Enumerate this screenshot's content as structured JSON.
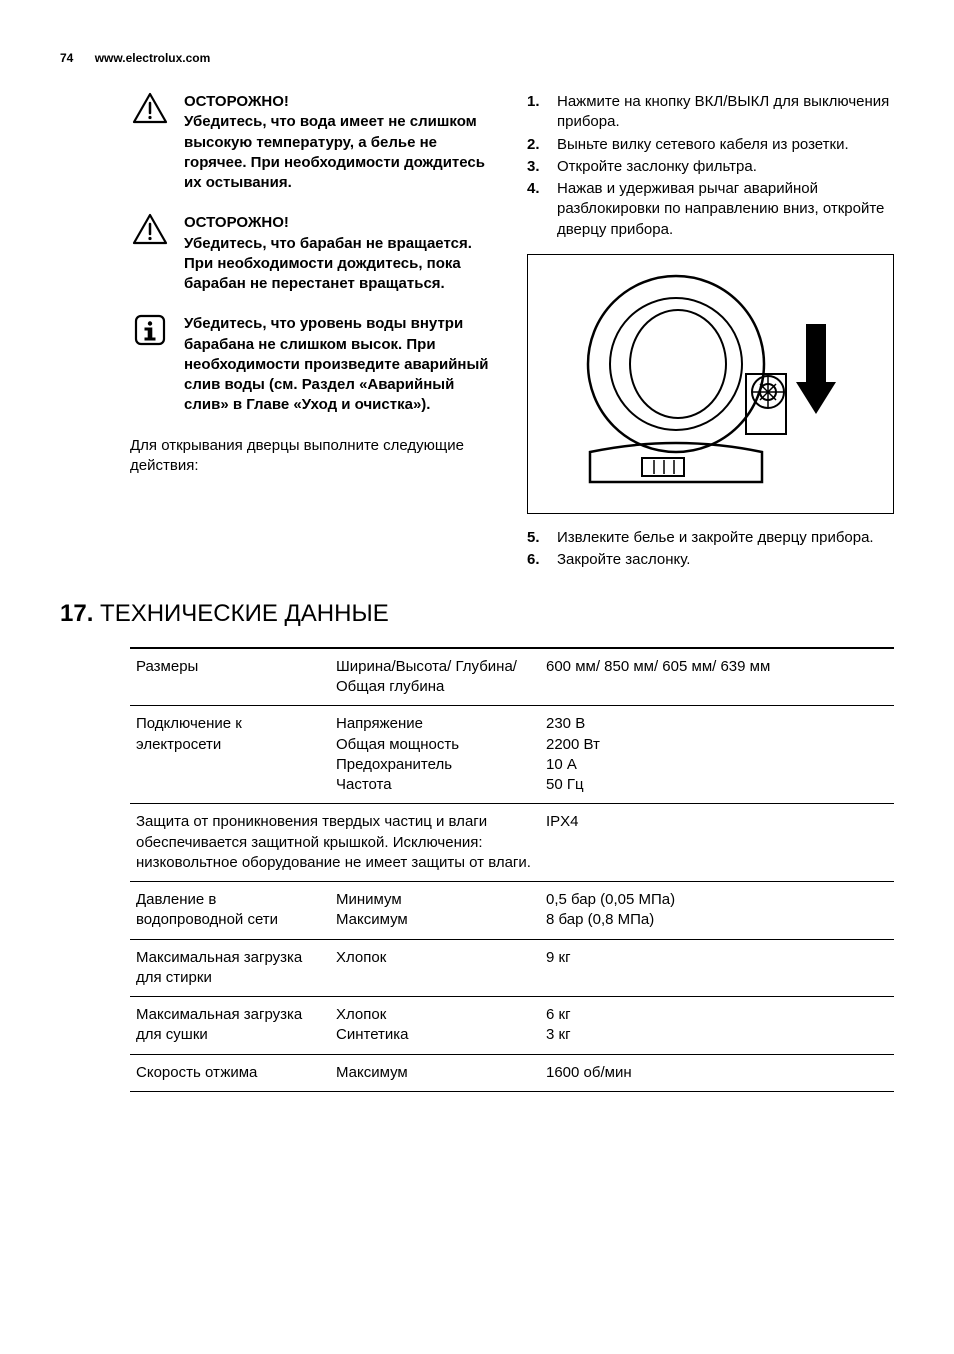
{
  "header": {
    "page": "74",
    "site": "www.electrolux.com"
  },
  "warnings": {
    "w1": {
      "title": "ОСТОРОЖНО!",
      "body": "Убедитесь, что вода имеет не слишком высокую температуру, а белье не горячее. При необходимости дождитесь их остывания."
    },
    "w2": {
      "title": "ОСТОРОЖНО!",
      "body": "Убедитесь, что барабан не вращается. При необходимости дождитесь, пока барабан не перестанет вращаться."
    },
    "info": {
      "body": "Убедитесь, что уровень воды внутри барабана не слишком высок. При необходимости произведите аварийный слив воды (см. Раздел «Аварийный слив» в Главе «Уход и очистка»)."
    }
  },
  "intro": "Для открывания дверцы выполните следующие действия:",
  "steps_a": [
    "Нажмите на кнопку ВКЛ/ВЫКЛ для выключения прибора.",
    "Выньте вилку сетевого кабеля из розетки.",
    "Откройте заслонку фильтра.",
    "Нажав и удерживая рычаг аварийной разблокировки по направлению вниз, откройте дверцу прибора."
  ],
  "steps_b": [
    "Извлеките белье и закройте дверцу прибора.",
    "Закройте заслонку."
  ],
  "section": {
    "num": "17.",
    "title": "ТЕХНИЧЕСКИЕ ДАННЫЕ"
  },
  "specs": [
    {
      "c1": "Размеры",
      "c2": "Ширина/Высота/ Глубина/Общая глубина",
      "c3": "600 мм/ 850 мм/ 605 мм/ 639 мм"
    },
    {
      "c1": "Подключение к электросети",
      "c2": "Напряжение\nОбщая мощность\nПредохранитель\nЧастота",
      "c3": "230 В\n2200 Вт\n10 А\n50 Гц"
    },
    {
      "span": true,
      "c1": "Защита от проникновения твердых частиц и влаги обеспечивается защитной крышкой. Исключения: низковольтное оборудование не имеет защиты от влаги.",
      "c3": "IPX4"
    },
    {
      "c1": "Давление в водопроводной сети",
      "c2": "Минимум\nМаксимум",
      "c3": "0,5 бар (0,05 МПа)\n8 бар (0,8 МПа)"
    },
    {
      "c1": "Максимальная загрузка для стирки",
      "c2": "Хлопок",
      "c3": "9 кг"
    },
    {
      "c1": "Максимальная загрузка для сушки",
      "c2": "Хлопок\nСинтетика",
      "c3": "6 кг\n3 кг"
    },
    {
      "c1": "Скорость отжима",
      "c2": "Максимум",
      "c3": "1600 об/мин"
    }
  ],
  "icons": {
    "warning": "warning-triangle",
    "info": "info-square"
  },
  "colors": {
    "text": "#000000",
    "bg": "#ffffff",
    "border": "#000000"
  }
}
